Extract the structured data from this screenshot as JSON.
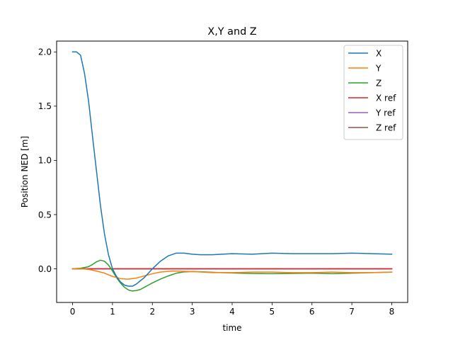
{
  "chart_data": {
    "type": "line",
    "title": "X,Y and Z",
    "xlabel": "time",
    "ylabel": "Position NED [m]",
    "xlim": [
      -0.4,
      8.4
    ],
    "ylim": [
      -0.31,
      2.1
    ],
    "xticks": [
      0,
      1,
      2,
      3,
      4,
      5,
      6,
      7,
      8
    ],
    "xtick_labels": [
      "0",
      "1",
      "2",
      "3",
      "4",
      "5",
      "6",
      "7",
      "8"
    ],
    "yticks": [
      0.0,
      0.5,
      1.0,
      1.5,
      2.0
    ],
    "ytick_labels": [
      "0.0",
      "0.5",
      "1.0",
      "1.5",
      "2.0"
    ],
    "grid": false,
    "legend_position": "top-right",
    "series": [
      {
        "name": "X",
        "color": "#1f77b4",
        "x": [
          0,
          0.1,
          0.2,
          0.3,
          0.4,
          0.5,
          0.6,
          0.7,
          0.8,
          0.9,
          1.0,
          1.1,
          1.2,
          1.3,
          1.4,
          1.5,
          1.6,
          1.7,
          1.8,
          1.9,
          2.0,
          2.2,
          2.4,
          2.6,
          2.8,
          3.0,
          3.2,
          3.5,
          4.0,
          4.5,
          5.0,
          5.5,
          6.0,
          6.5,
          7.0,
          7.5,
          8.0
        ],
        "y": [
          2.0,
          2.0,
          1.97,
          1.8,
          1.55,
          1.22,
          0.9,
          0.58,
          0.32,
          0.13,
          0.0,
          -0.07,
          -0.12,
          -0.15,
          -0.16,
          -0.16,
          -0.14,
          -0.11,
          -0.08,
          -0.04,
          0.0,
          0.07,
          0.12,
          0.145,
          0.145,
          0.135,
          0.13,
          0.13,
          0.14,
          0.135,
          0.145,
          0.14,
          0.14,
          0.14,
          0.145,
          0.14,
          0.135
        ]
      },
      {
        "name": "Y",
        "color": "#ff7f0e",
        "x": [
          0,
          0.2,
          0.4,
          0.6,
          0.8,
          1.0,
          1.2,
          1.4,
          1.6,
          1.8,
          2.0,
          2.2,
          2.5,
          3.0,
          3.5,
          4.0,
          4.5,
          5.0,
          5.5,
          6.0,
          6.5,
          7.0,
          7.5,
          8.0
        ],
        "y": [
          0.0,
          0.0,
          -0.005,
          -0.02,
          -0.04,
          -0.07,
          -0.09,
          -0.095,
          -0.085,
          -0.065,
          -0.045,
          -0.03,
          -0.02,
          -0.025,
          -0.035,
          -0.035,
          -0.03,
          -0.03,
          -0.035,
          -0.035,
          -0.03,
          -0.035,
          -0.035,
          -0.03
        ]
      },
      {
        "name": "Z",
        "color": "#2ca02c",
        "x": [
          0,
          0.2,
          0.4,
          0.5,
          0.6,
          0.7,
          0.8,
          0.9,
          1.0,
          1.1,
          1.2,
          1.3,
          1.4,
          1.5,
          1.6,
          1.7,
          1.8,
          1.9,
          2.0,
          2.2,
          2.4,
          2.6,
          2.8,
          3.0,
          3.3,
          3.6,
          4.0,
          4.5,
          5.0,
          5.5,
          6.0,
          6.5,
          7.0,
          7.5,
          8.0
        ],
        "y": [
          0.0,
          0.005,
          0.02,
          0.04,
          0.065,
          0.08,
          0.07,
          0.035,
          -0.02,
          -0.08,
          -0.13,
          -0.17,
          -0.195,
          -0.205,
          -0.2,
          -0.19,
          -0.17,
          -0.15,
          -0.13,
          -0.095,
          -0.065,
          -0.04,
          -0.028,
          -0.025,
          -0.028,
          -0.033,
          -0.038,
          -0.043,
          -0.045,
          -0.042,
          -0.04,
          -0.045,
          -0.04,
          -0.035,
          -0.03
        ]
      },
      {
        "name": "X ref",
        "color": "#d62728",
        "x": [
          0,
          8
        ],
        "y": [
          0.0,
          0.0
        ]
      },
      {
        "name": "Y ref",
        "color": "#9467bd",
        "x": [
          0,
          8
        ],
        "y": [
          0.0,
          0.0
        ]
      },
      {
        "name": "Z ref",
        "color": "#8c564b",
        "x": [
          0,
          8
        ],
        "y": [
          0.0,
          0.0
        ]
      }
    ]
  }
}
